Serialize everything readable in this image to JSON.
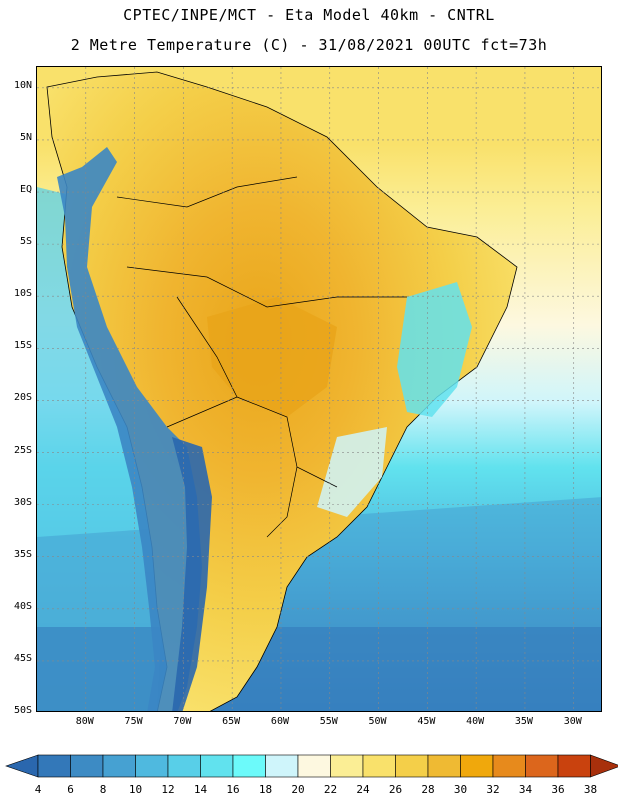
{
  "header": {
    "line1": "CPTEC/INPE/MCT -  Eta Model 40km - CNTRL",
    "line2": "2 Metre Temperature (C) - 31/08/2021 00UTC fct=73h"
  },
  "map": {
    "lon_range": [
      -85,
      -27
    ],
    "lat_range": [
      -50,
      12
    ],
    "lat_labels": [
      "10N",
      "5N",
      "EQ",
      "5S",
      "10S",
      "15S",
      "20S",
      "25S",
      "30S",
      "35S",
      "40S",
      "45S",
      "50S"
    ],
    "lon_labels": [
      "80W",
      "75W",
      "70W",
      "65W",
      "60W",
      "55W",
      "50W",
      "45W",
      "40W",
      "35W",
      "30W"
    ],
    "colors": {
      "ocean_base": "#5ce1ea",
      "land_warm": "#f0b530",
      "andes": "#3b86c4"
    }
  },
  "colorbar": {
    "levels": [
      "4",
      "6",
      "8",
      "10",
      "12",
      "14",
      "16",
      "18",
      "20",
      "22",
      "24",
      "26",
      "28",
      "30",
      "32",
      "34",
      "36",
      "38"
    ],
    "colors": [
      "#2a67ae",
      "#3378b9",
      "#3d8bc4",
      "#46a1d2",
      "#4fb9df",
      "#58cfe8",
      "#61e2ee",
      "#6cfafa",
      "#cff5fb",
      "#fdf8e0",
      "#fbee95",
      "#f9e16b",
      "#f4cf49",
      "#efba33",
      "#f0a80c",
      "#e78a1c",
      "#dc661c",
      "#c9420e",
      "#a8300c"
    ]
  }
}
